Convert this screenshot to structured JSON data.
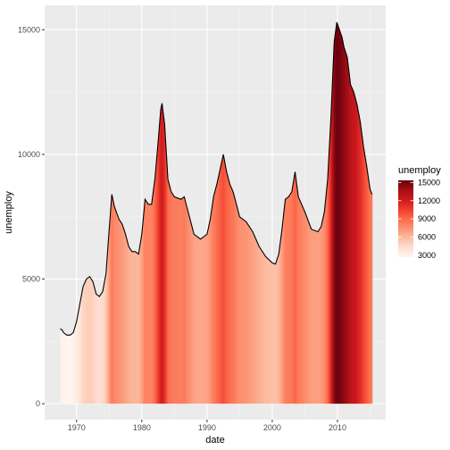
{
  "chart_data": {
    "type": "area",
    "xlabel": "date",
    "ylabel": "unemploy",
    "x_ticks": [
      1970,
      1980,
      1990,
      2000,
      2010
    ],
    "y_ticks": [
      0,
      5000,
      10000,
      15000
    ],
    "x_range": [
      1967.5,
      2015.3
    ],
    "ylim": [
      0,
      15400
    ],
    "grid": true,
    "legend": {
      "title": "unemploy",
      "position": "right",
      "ticks": [
        3000,
        6000,
        9000,
        12000,
        15000
      ],
      "range": [
        2685,
        15352
      ],
      "colors": [
        "#fff5f0",
        "#fee0d2",
        "#fcbba1",
        "#fc9272",
        "#fb6a4a",
        "#ef3b2c",
        "#cb181d",
        "#a50f15",
        "#67000d"
      ]
    },
    "series": [
      {
        "values": [
          [
            1967.5,
            3000
          ],
          [
            1967.8,
            2950
          ],
          [
            1968.0,
            2850
          ],
          [
            1968.5,
            2750
          ],
          [
            1969.0,
            2750
          ],
          [
            1969.5,
            2850
          ],
          [
            1970.0,
            3300
          ],
          [
            1970.5,
            4000
          ],
          [
            1971.0,
            4700
          ],
          [
            1971.5,
            5000
          ],
          [
            1972.0,
            5100
          ],
          [
            1972.5,
            4900
          ],
          [
            1973.0,
            4400
          ],
          [
            1973.5,
            4300
          ],
          [
            1974.0,
            4500
          ],
          [
            1974.5,
            5200
          ],
          [
            1975.0,
            7000
          ],
          [
            1975.4,
            8400
          ],
          [
            1975.8,
            7900
          ],
          [
            1976.5,
            7400
          ],
          [
            1977.0,
            7200
          ],
          [
            1977.5,
            6800
          ],
          [
            1978.0,
            6300
          ],
          [
            1978.5,
            6100
          ],
          [
            1979.0,
            6100
          ],
          [
            1979.5,
            6000
          ],
          [
            1980.0,
            6800
          ],
          [
            1980.5,
            8200
          ],
          [
            1981.0,
            8000
          ],
          [
            1981.5,
            8000
          ],
          [
            1982.0,
            9000
          ],
          [
            1982.5,
            10500
          ],
          [
            1982.9,
            11800
          ],
          [
            1983.1,
            12050
          ],
          [
            1983.5,
            11200
          ],
          [
            1984.0,
            9000
          ],
          [
            1984.5,
            8500
          ],
          [
            1985.0,
            8300
          ],
          [
            1986.0,
            8200
          ],
          [
            1986.5,
            8300
          ],
          [
            1987.0,
            7800
          ],
          [
            1987.5,
            7300
          ],
          [
            1988.0,
            6800
          ],
          [
            1988.5,
            6700
          ],
          [
            1989.0,
            6600
          ],
          [
            1990.0,
            6800
          ],
          [
            1990.5,
            7400
          ],
          [
            1991.0,
            8300
          ],
          [
            1991.5,
            8800
          ],
          [
            1992.0,
            9400
          ],
          [
            1992.5,
            10000
          ],
          [
            1993.0,
            9300
          ],
          [
            1993.5,
            8800
          ],
          [
            1994.0,
            8500
          ],
          [
            1994.5,
            8000
          ],
          [
            1995.0,
            7500
          ],
          [
            1996.0,
            7300
          ],
          [
            1997.0,
            6900
          ],
          [
            1998.0,
            6300
          ],
          [
            1999.0,
            5900
          ],
          [
            2000.0,
            5650
          ],
          [
            2000.5,
            5600
          ],
          [
            2001.0,
            6000
          ],
          [
            2001.5,
            7000
          ],
          [
            2002.0,
            8200
          ],
          [
            2002.5,
            8300
          ],
          [
            2003.0,
            8500
          ],
          [
            2003.5,
            9300
          ],
          [
            2004.0,
            8300
          ],
          [
            2005.0,
            7700
          ],
          [
            2006.0,
            7000
          ],
          [
            2007.0,
            6900
          ],
          [
            2007.5,
            7100
          ],
          [
            2008.0,
            7700
          ],
          [
            2008.5,
            9000
          ],
          [
            2009.0,
            11500
          ],
          [
            2009.5,
            14500
          ],
          [
            2009.9,
            15300
          ],
          [
            2010.3,
            15000
          ],
          [
            2010.7,
            14700
          ],
          [
            2011.0,
            14300
          ],
          [
            2011.5,
            13900
          ],
          [
            2012.0,
            12800
          ],
          [
            2012.5,
            12500
          ],
          [
            2013.0,
            12000
          ],
          [
            2013.5,
            11300
          ],
          [
            2014.0,
            10300
          ],
          [
            2014.5,
            9500
          ],
          [
            2015.0,
            8600
          ],
          [
            2015.3,
            8400
          ]
        ]
      }
    ]
  }
}
